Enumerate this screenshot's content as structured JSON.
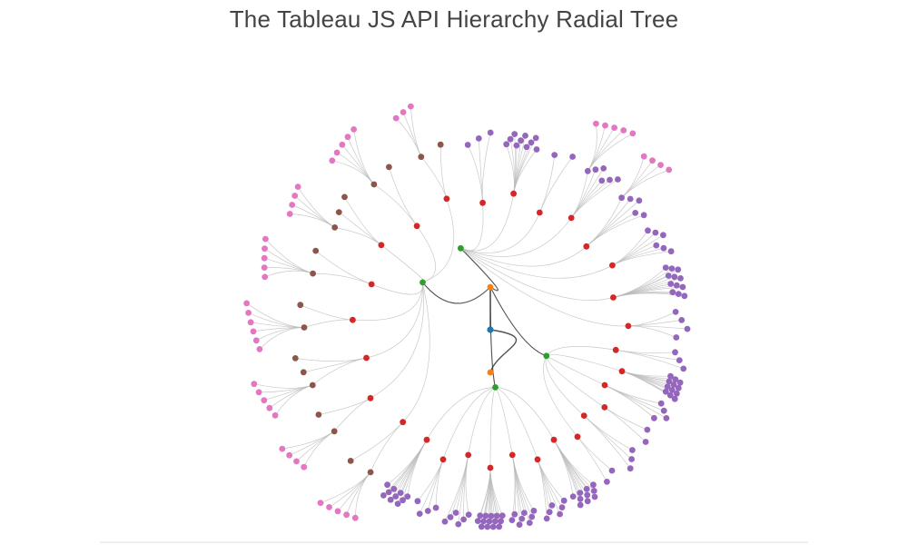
{
  "title": "The Tableau JS API Hierarchy Radial Tree",
  "colors": {
    "level": [
      "#1f77b4",
      "#ff7f0e",
      "#2ca02c",
      "#d62728",
      "#9467bd",
      "#8c564b",
      "#e377c2",
      "#7f7f7f"
    ],
    "link_inner": "#333333",
    "link_outer": "#bbbbbb"
  },
  "tree": {
    "root_children": [
      {
        "major": [
          {
            "branches": [
              {
                "mid": 2,
                "leaves": 5
              },
              {
                "mid": 2,
                "leaves": 4
              },
              {
                "mid": 3,
                "leaves": 5
              },
              {
                "mid": 2,
                "leaves": 6
              },
              {
                "mid": 2,
                "leaves": 5
              },
              {
                "mid": 3,
                "leaves": 4
              },
              {
                "mid": 2,
                "leaves": 5
              },
              {
                "mid": 2,
                "leaves": 3
              }
            ]
          },
          {
            "branches": [
              {
                "mid": 3,
                "leaves": 0
              },
              {
                "mid": 10,
                "leaves": 0
              },
              {
                "mid": 2,
                "leaves": 0
              },
              {
                "mid": 6,
                "leaves": 5
              },
              {
                "mid": 5,
                "leaves": 4
              },
              {
                "mid": 6,
                "leaves": 0
              },
              {
                "mid": 12,
                "leaves": 0
              },
              {
                "mid": 4,
                "leaves": 0
              }
            ]
          },
          {
            "branches": [
              {
                "mid": 3,
                "leaves": 0
              },
              {
                "mid": 12,
                "leaves": 0
              },
              {
                "mid": 4,
                "leaves": 0
              },
              {
                "mid": 2,
                "leaves": 0
              },
              {
                "mid": 3,
                "leaves": 0
              },
              {
                "mid": 2,
                "leaves": 0
              }
            ]
          },
          {
            "branches": [
              {
                "mid": 10,
                "leaves": 0
              },
              {
                "mid": 6,
                "leaves": 0
              },
              {
                "mid": 8,
                "leaves": 0
              },
              {
                "mid": 14,
                "leaves": 0
              },
              {
                "mid": 6,
                "leaves": 0
              },
              {
                "mid": 4,
                "leaves": 0
              },
              {
                "mid": 10,
                "leaves": 0
              }
            ]
          }
        ]
      },
      {
        "major": []
      }
    ]
  }
}
